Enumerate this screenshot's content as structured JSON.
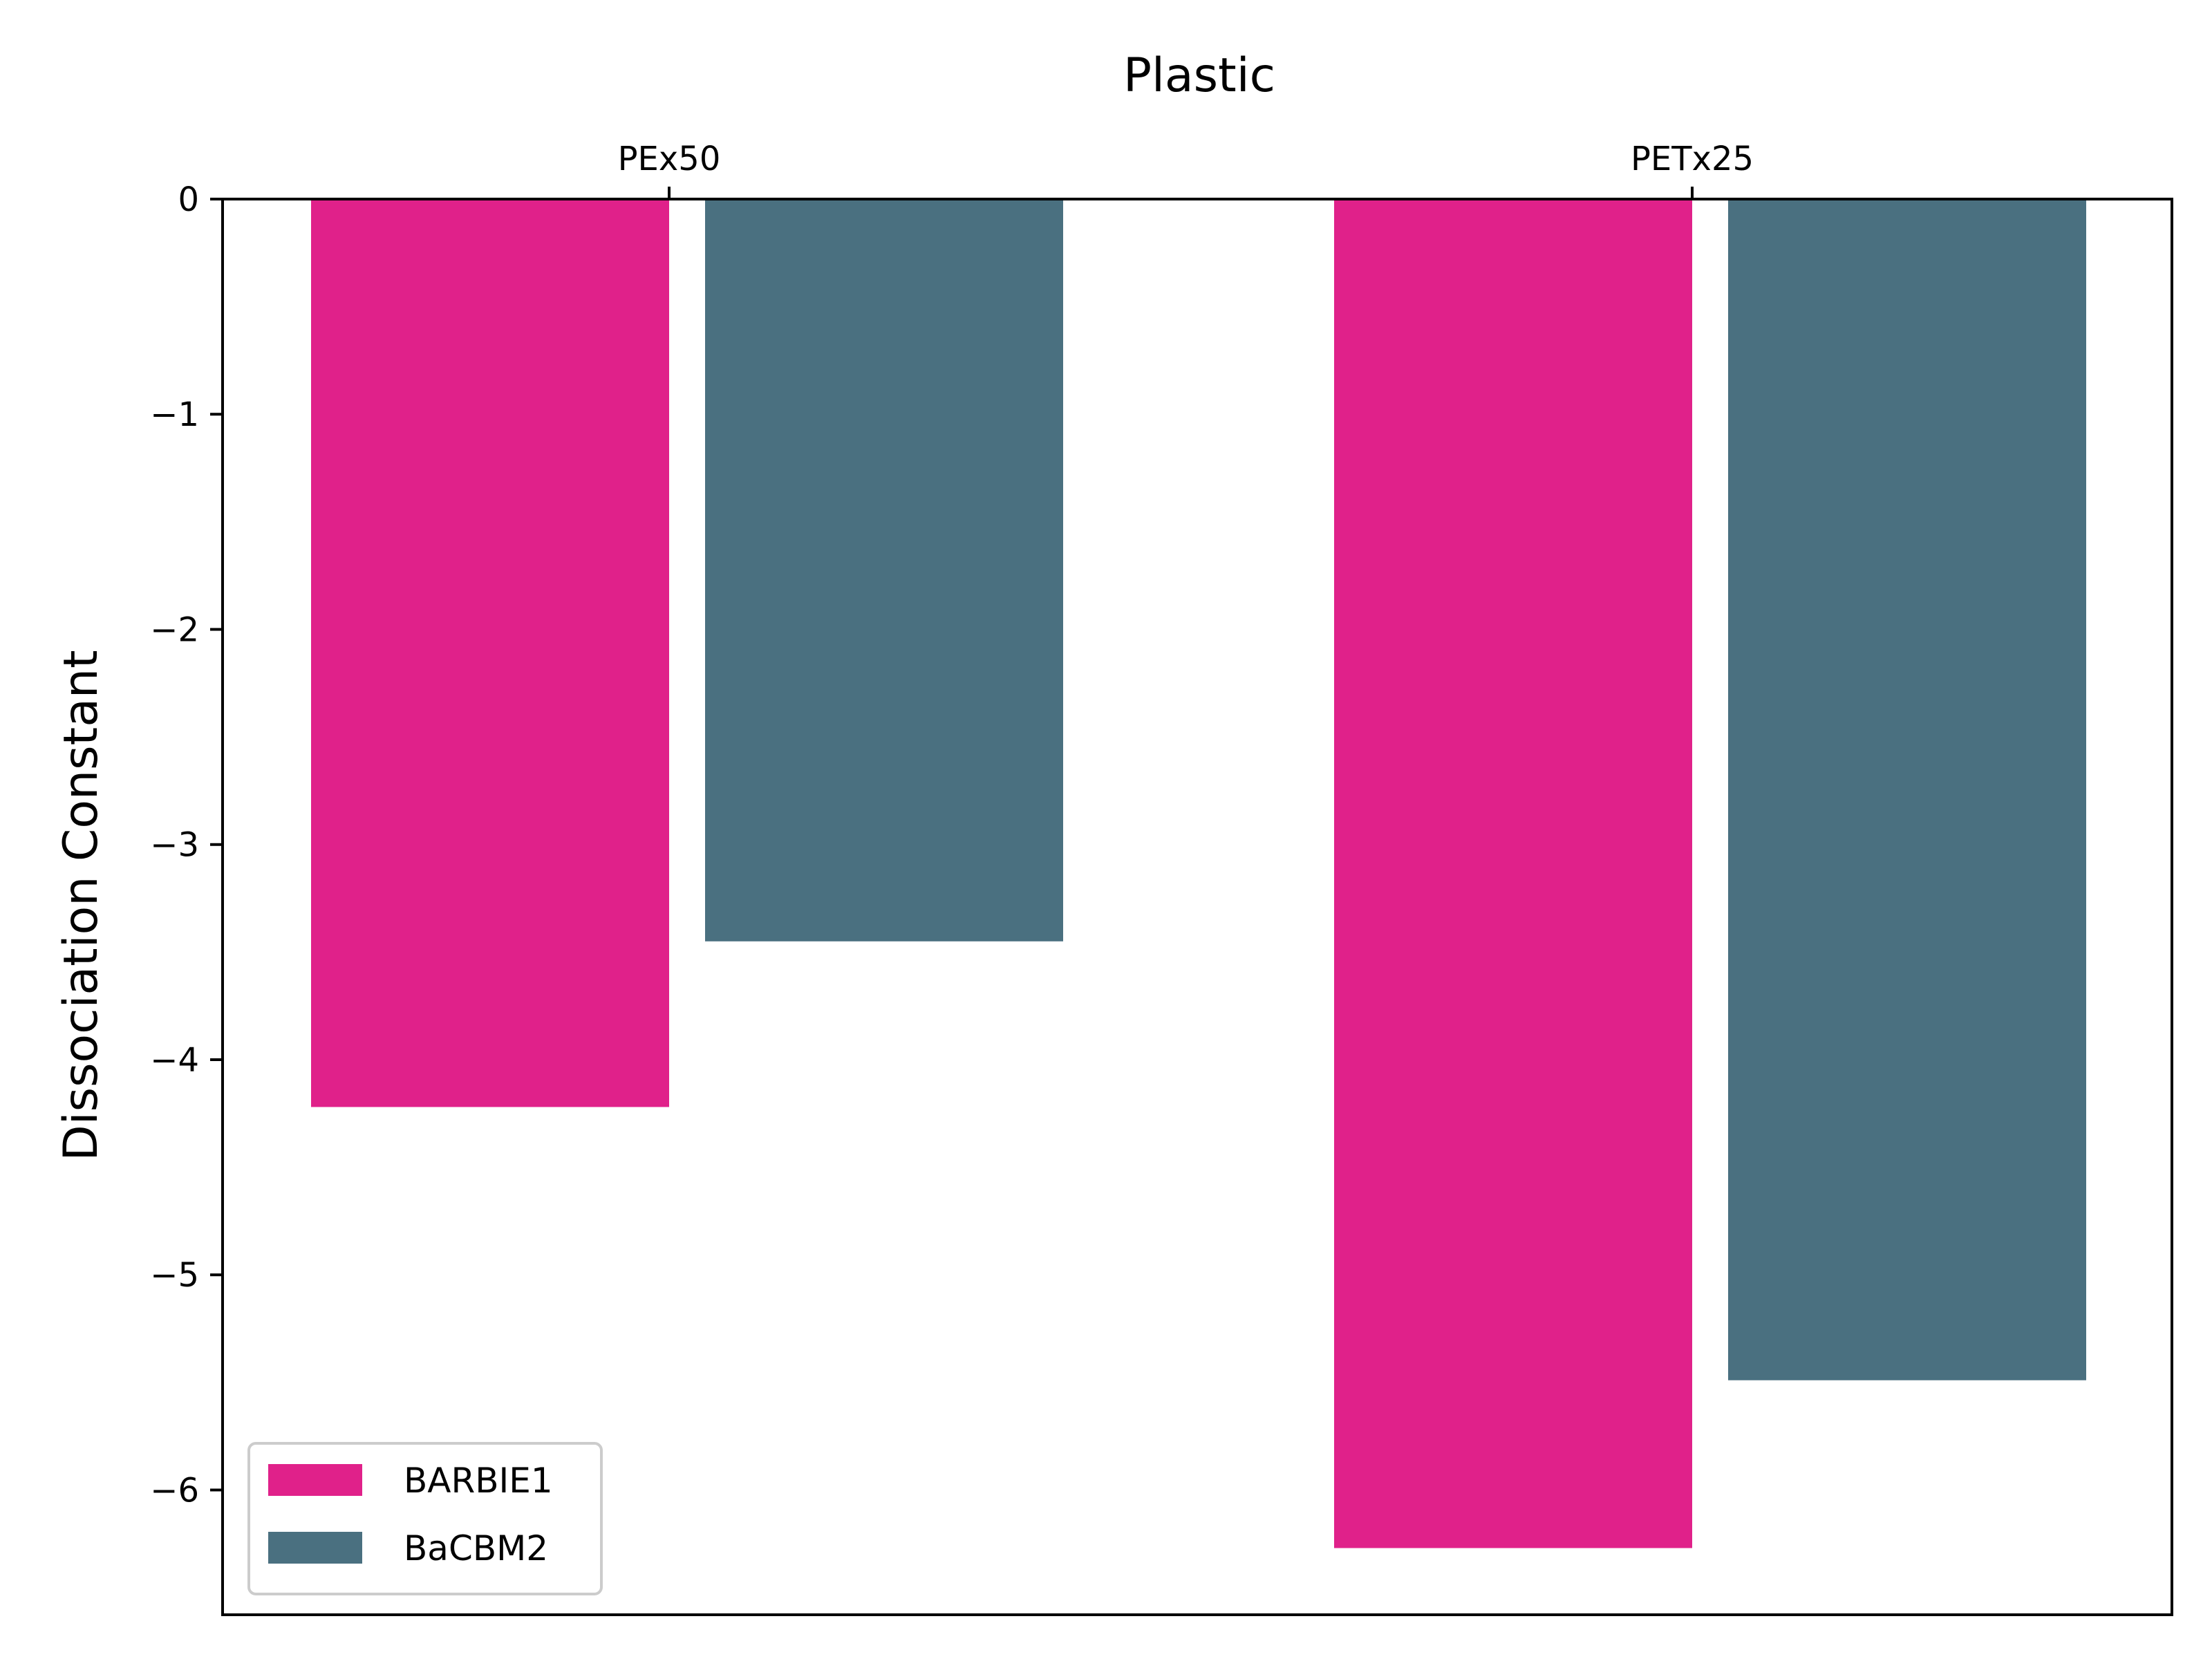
{
  "chart_data": {
    "type": "bar",
    "title": "",
    "xlabel": "Plastic",
    "ylabel": "Dissociation Constant",
    "x_axis_position": "top",
    "categories": [
      "PEx50",
      "PETx25"
    ],
    "series": [
      {
        "name": "BARBIE1",
        "color": "#e0218a",
        "values": [
          -4.22,
          -6.27
        ]
      },
      {
        "name": "BaCBM2",
        "color": "#4a7080",
        "values": [
          -3.45,
          -5.49
        ]
      }
    ],
    "ylim": [
      -6.58,
      0
    ],
    "yticks": [
      0,
      -1,
      -2,
      -3,
      -4,
      -5,
      -6
    ],
    "ytick_labels": [
      "0",
      "−1",
      "−2",
      "−3",
      "−4",
      "−5",
      "−6"
    ],
    "grid": false,
    "legend": {
      "position": "lower-left"
    }
  }
}
